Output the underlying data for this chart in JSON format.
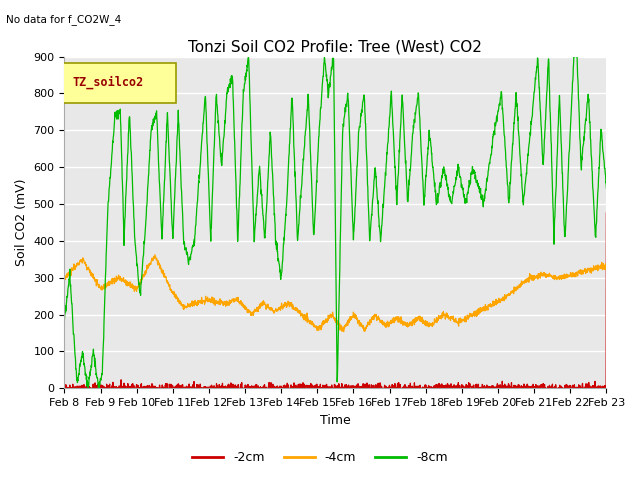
{
  "title": "Tonzi Soil CO2 Profile: Tree (West) CO2",
  "no_data_text": "No data for f_CO2W_4",
  "xlabel": "Time",
  "ylabel": "Soil CO2 (mV)",
  "ylim": [
    0,
    900
  ],
  "x_tick_labels": [
    "Feb 8",
    "Feb 9",
    "Feb 10",
    "Feb 11",
    "Feb 12",
    "Feb 13",
    "Feb 14",
    "Feb 15",
    "Feb 16",
    "Feb 17",
    "Feb 18",
    "Feb 19",
    "Feb 20",
    "Feb 21",
    "Feb 22",
    "Feb 23"
  ],
  "legend_label": "TZ_soilco2",
  "legend_box_color": "#ffff99",
  "legend_box_edge": "#999900",
  "legend_text_color": "#990000",
  "series_labels": [
    "-2cm",
    "-4cm",
    "-8cm"
  ],
  "series_colors": [
    "#cc0000",
    "#ffa500",
    "#00bb00"
  ],
  "background_color": "#ffffff",
  "plot_bg_color": "#e8e8e8",
  "grid_color": "#ffffff",
  "title_fontsize": 11,
  "axis_fontsize": 9,
  "tick_fontsize": 8
}
